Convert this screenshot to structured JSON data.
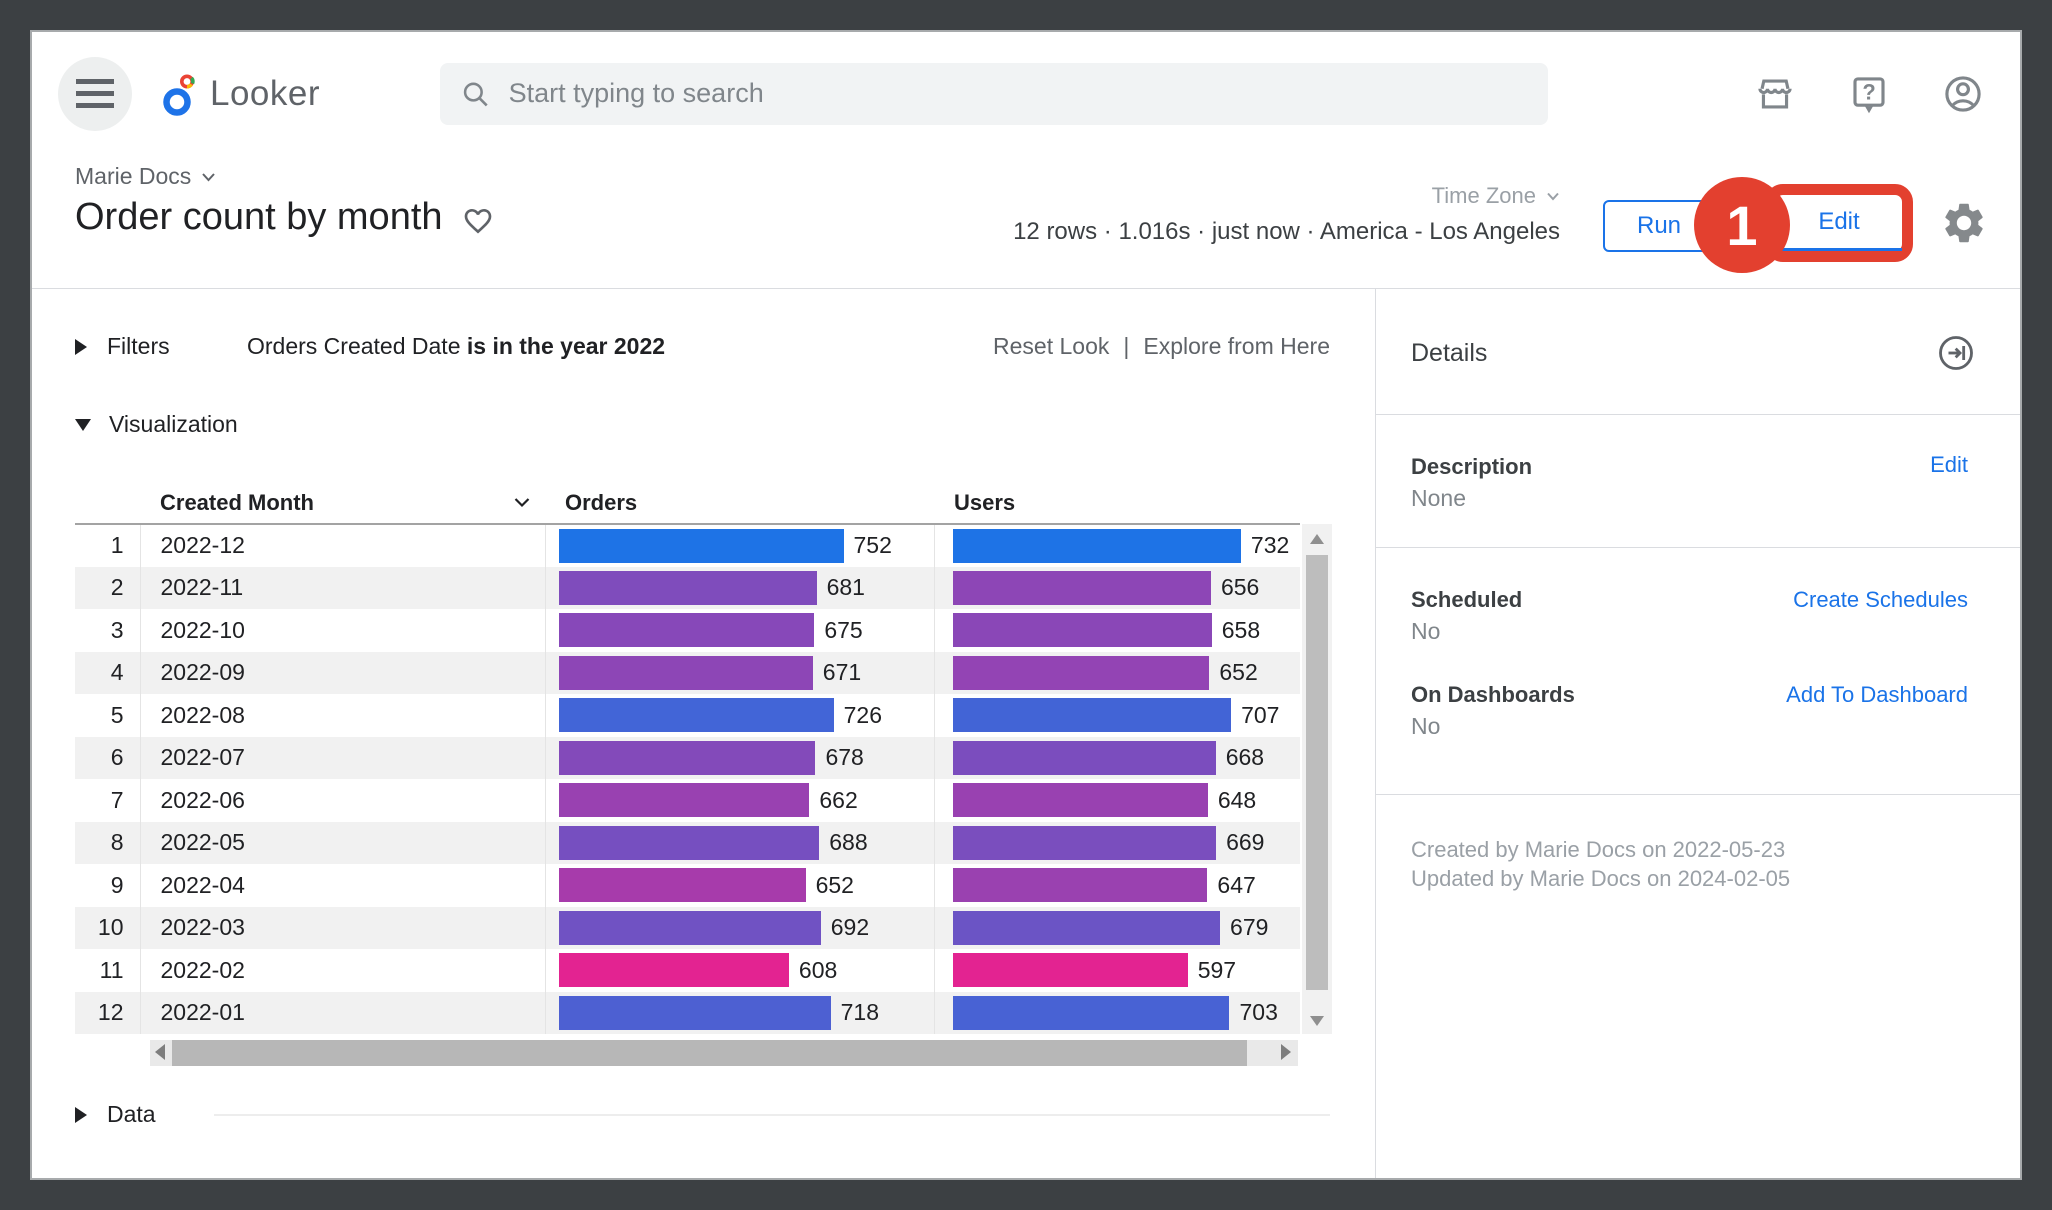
{
  "app": {
    "logo_text": "Looker",
    "search_placeholder": "Start typing to search"
  },
  "toolbar": {
    "breadcrumb": "Marie Docs",
    "title": "Order count by month",
    "time_zone_label": "Time Zone",
    "stats": "12 rows · 1.016s · just now · America - Los Angeles",
    "run_label": "Run",
    "edit_label": "Edit",
    "annotation_step": "1"
  },
  "panels": {
    "filters_label": "Filters",
    "filter_field": "Orders Created Date ",
    "filter_condition": "is in the year 2022",
    "reset_link": "Reset Look",
    "link_separator": "|",
    "explore_link": "Explore from Here",
    "visualization_label": "Visualization",
    "data_label": "Data"
  },
  "chart_data": {
    "type": "table",
    "title": "Order count by month",
    "columns": [
      "Created Month",
      "Orders",
      "Users"
    ],
    "categories": [
      "2022-12",
      "2022-11",
      "2022-10",
      "2022-09",
      "2022-08",
      "2022-07",
      "2022-06",
      "2022-05",
      "2022-04",
      "2022-03",
      "2022-02",
      "2022-01"
    ],
    "series": [
      {
        "name": "Orders",
        "values": [
          752,
          681,
          675,
          671,
          726,
          678,
          662,
          688,
          652,
          692,
          608,
          718
        ]
      },
      {
        "name": "Users",
        "values": [
          732,
          656,
          658,
          652,
          707,
          668,
          648,
          669,
          647,
          679,
          597,
          703
        ]
      }
    ],
    "row_count": 12,
    "bar_style": {
      "low_color": "#e32391",
      "high_color": "#1e73e6",
      "note": "bar color interpolated per column from min (pink) to max (blue); bar length proportional to value",
      "max_width_pct": [
        76,
        83
      ]
    }
  },
  "details": {
    "title": "Details",
    "description_label": "Description",
    "description_value": "None",
    "edit_link": "Edit",
    "scheduled_label": "Scheduled",
    "scheduled_value": "No",
    "create_schedules_link": "Create Schedules",
    "dashboards_label": "On Dashboards",
    "dashboards_value": "No",
    "add_to_dashboard_link": "Add To Dashboard",
    "created_line": "Created by Marie Docs on 2022-05-23",
    "updated_line": "Updated by Marie Docs on 2024-02-05"
  }
}
